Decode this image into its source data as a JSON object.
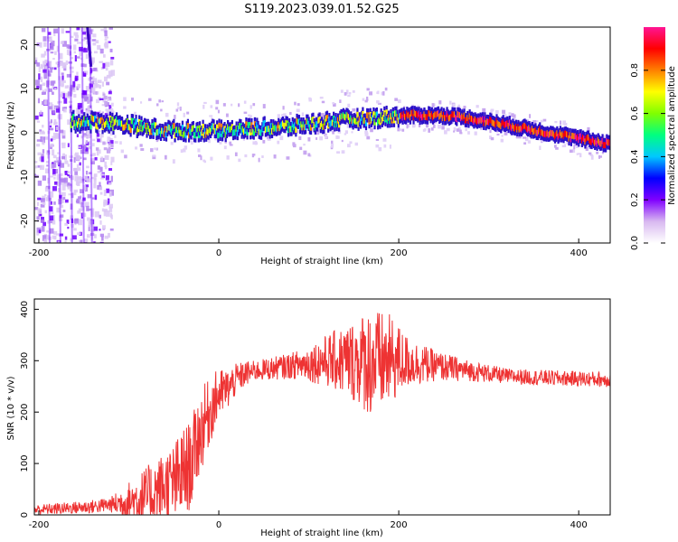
{
  "title": "S119.2023.039.01.52.G25",
  "chart_data": [
    {
      "type": "heatmap",
      "xlabel": "Height of straight line (km)",
      "ylabel": "Frequency (Hz)",
      "xlim": [
        -205,
        435
      ],
      "ylim": [
        -25,
        24
      ],
      "xticks": [
        -200,
        0,
        200,
        400
      ],
      "yticks": [
        -20,
        -10,
        0,
        10,
        20
      ],
      "colorbar": {
        "label": "Normalized spectral amplitude",
        "range": [
          0,
          1
        ],
        "ticks": [
          "0.0",
          "0.2",
          "0.4",
          "0.6",
          "0.8"
        ],
        "colormap": [
          "#ffffff",
          "#d8b8f0",
          "#8000ff",
          "#0000ff",
          "#00c8ff",
          "#00ff80",
          "#80ff00",
          "#ffff00",
          "#ff8000",
          "#ff0000",
          "#ff1493"
        ]
      },
      "ridge": {
        "x": [
          -170,
          -140,
          -120,
          -100,
          -80,
          -60,
          -40,
          -20,
          0,
          20,
          40,
          60,
          80,
          100,
          120,
          140,
          160,
          180,
          200,
          220,
          240,
          260,
          280,
          300,
          320,
          340,
          360,
          380,
          400,
          420,
          435
        ],
        "y": [
          2.5,
          2.5,
          2.3,
          1.8,
          1.0,
          0.5,
          0.5,
          0.5,
          0.5,
          0.8,
          1.0,
          1.2,
          1.5,
          2.0,
          2.5,
          3.0,
          3.2,
          3.5,
          3.8,
          4.0,
          4.0,
          3.8,
          3.2,
          2.5,
          1.8,
          1.0,
          0.2,
          -0.5,
          -1.3,
          -2.0,
          -2.5
        ]
      }
    },
    {
      "type": "line",
      "xlabel": "Height of straight line (km)",
      "ylabel": "SNR (10 * v/v)",
      "xlim": [
        -205,
        435
      ],
      "ylim": [
        0,
        420
      ],
      "xticks": [
        -200,
        0,
        200,
        400
      ],
      "yticks": [
        0,
        100,
        200,
        300,
        400
      ],
      "color": "#ee3333",
      "series": [
        {
          "x": [
            -205,
            -180,
            -160,
            -140,
            -120,
            -100,
            -80,
            -70,
            -60,
            -50,
            -40,
            -30,
            -25,
            -20,
            -15,
            -10,
            -5,
            0,
            10,
            20,
            30,
            40,
            60,
            80,
            100,
            120,
            140,
            160,
            175,
            190,
            200,
            220,
            240,
            260,
            280,
            300,
            320,
            340,
            360,
            380,
            400,
            420,
            435
          ],
          "y": [
            10,
            12,
            14,
            16,
            20,
            25,
            35,
            45,
            55,
            60,
            80,
            100,
            140,
            160,
            185,
            200,
            220,
            235,
            245,
            265,
            275,
            280,
            285,
            290,
            295,
            300,
            300,
            300,
            295,
            300,
            300,
            295,
            290,
            285,
            280,
            275,
            270,
            268,
            267,
            266,
            265,
            264,
            263
          ]
        }
      ],
      "amplitude": {
        "x": [
          -205,
          -160,
          -120,
          -100,
          -80,
          -60,
          -40,
          -20,
          0,
          20,
          40,
          80,
          100,
          130,
          150,
          170,
          190,
          210,
          240,
          280,
          320,
          360,
          435
        ],
        "y": [
          10,
          12,
          15,
          40,
          60,
          70,
          90,
          80,
          50,
          30,
          20,
          25,
          35,
          60,
          80,
          110,
          90,
          50,
          30,
          20,
          15,
          15,
          15
        ]
      }
    }
  ]
}
